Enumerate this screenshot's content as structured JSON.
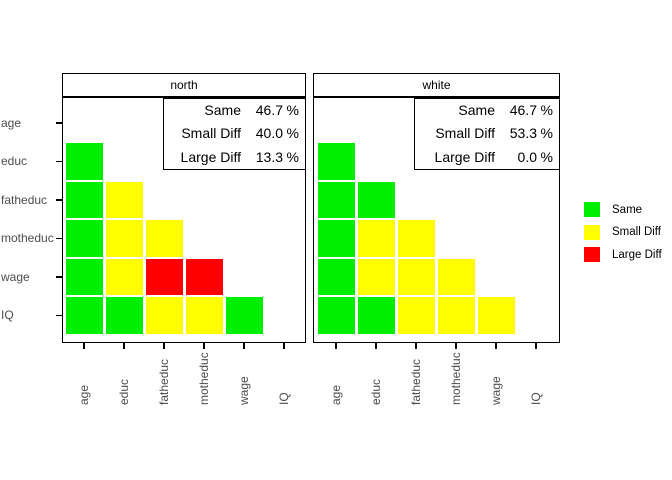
{
  "figure": {
    "background": "#ffffff"
  },
  "colors": {
    "same": "#00EE00",
    "small_diff": "#FFFF00",
    "large_diff": "#FF0000",
    "axis_text": "#4d4d4d",
    "text": "#000000",
    "border": "#000000"
  },
  "chart_data": {
    "type": "heatmap",
    "description": "Faceted lower-triangle agreement heatmap comparing pairs of variables, colored by agreement category",
    "x_categories": [
      "age",
      "educ",
      "fatheduc",
      "motheduc",
      "wage",
      "IQ"
    ],
    "y_categories": [
      "age",
      "educ",
      "fatheduc",
      "motheduc",
      "wage",
      "IQ"
    ],
    "x_tick_label_rotation_deg": 90,
    "grid": false,
    "legend": {
      "position": "right",
      "items": [
        {
          "label": "Same",
          "color": "#00EE00"
        },
        {
          "label": "Small Diff",
          "color": "#FFFF00"
        },
        {
          "label": "Large Diff",
          "color": "#FF0000"
        }
      ]
    },
    "facets": [
      {
        "title": "north",
        "stats": [
          {
            "label": "Same",
            "value": "46.7",
            "unit": "%"
          },
          {
            "label": "Small Diff",
            "value": "40.0",
            "unit": "%"
          },
          {
            "label": "Large Diff",
            "value": "13.3",
            "unit": "%"
          }
        ],
        "matrix": {
          "age": [],
          "educ": [
            "Same"
          ],
          "fatheduc": [
            "Same",
            "Small Diff"
          ],
          "motheduc": [
            "Same",
            "Small Diff",
            "Small Diff"
          ],
          "wage": [
            "Same",
            "Small Diff",
            "Large Diff",
            "Large Diff"
          ],
          "IQ": [
            "Same",
            "Same",
            "Small Diff",
            "Small Diff",
            "Same"
          ]
        }
      },
      {
        "title": "white",
        "stats": [
          {
            "label": "Same",
            "value": "46.7",
            "unit": "%"
          },
          {
            "label": "Small Diff",
            "value": "53.3",
            "unit": "%"
          },
          {
            "label": "Large Diff",
            "value": "0.0",
            "unit": "%"
          }
        ],
        "matrix": {
          "age": [],
          "educ": [
            "Same"
          ],
          "fatheduc": [
            "Same",
            "Same"
          ],
          "motheduc": [
            "Same",
            "Small Diff",
            "Small Diff"
          ],
          "wage": [
            "Same",
            "Small Diff",
            "Small Diff",
            "Small Diff"
          ],
          "IQ": [
            "Same",
            "Same",
            "Small Diff",
            "Small Diff",
            "Small Diff"
          ]
        }
      }
    ]
  }
}
